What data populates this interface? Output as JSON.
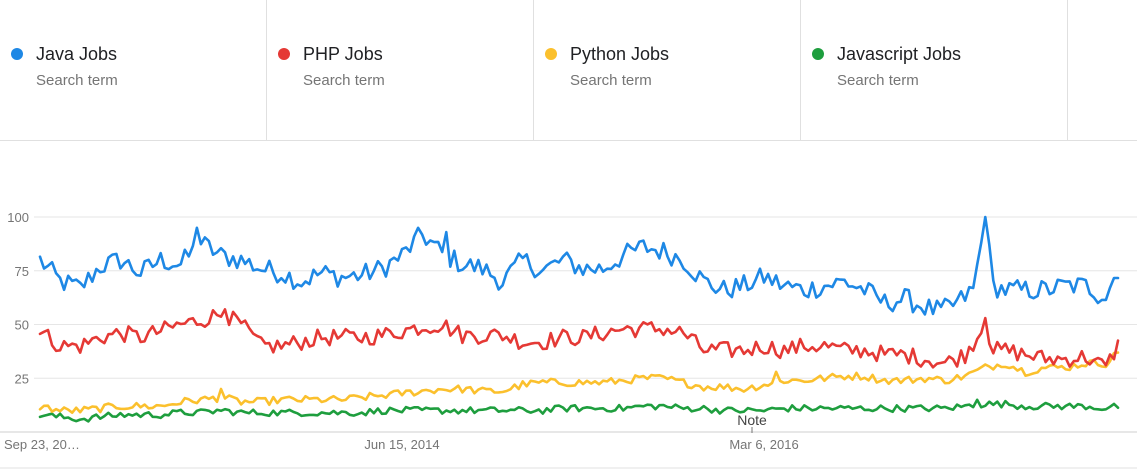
{
  "terms": [
    {
      "name": "Java Jobs",
      "sub": "Search term",
      "color": "#1e88e5"
    },
    {
      "name": "PHP Jobs",
      "sub": "Search term",
      "color": "#e53935"
    },
    {
      "name": "Python Jobs",
      "sub": "Search term",
      "color": "#fbc02d"
    },
    {
      "name": "Javascript Jobs",
      "sub": "Search term",
      "color": "#1e9e3e"
    }
  ],
  "note_label": "Note",
  "chart_data": {
    "type": "line",
    "x_range": [
      "Sep 23, 20…",
      "2019"
    ],
    "x_ticks": [
      {
        "label": "Sep 23, 20…",
        "week_index": 0
      },
      {
        "label": "Jun 15, 2014",
        "week_index": 90
      },
      {
        "label": "Mar 6, 2016",
        "week_index": 180
      }
    ],
    "ylim": [
      0,
      100
    ],
    "y_ticks": [
      25,
      50,
      75,
      100
    ],
    "grid": true,
    "series": [
      {
        "name": "Java Jobs",
        "color": "#1e88e5",
        "anchors": [
          [
            0,
            80
          ],
          [
            5,
            70
          ],
          [
            10,
            67
          ],
          [
            15,
            77
          ],
          [
            20,
            80
          ],
          [
            25,
            74
          ],
          [
            30,
            80
          ],
          [
            35,
            78
          ],
          [
            40,
            88
          ],
          [
            45,
            82
          ],
          [
            50,
            80
          ],
          [
            55,
            76
          ],
          [
            60,
            74
          ],
          [
            65,
            70
          ],
          [
            70,
            74
          ],
          [
            75,
            72
          ],
          [
            80,
            73
          ],
          [
            85,
            76
          ],
          [
            90,
            82
          ],
          [
            95,
            92
          ],
          [
            100,
            83
          ],
          [
            105,
            78
          ],
          [
            110,
            76
          ],
          [
            115,
            70
          ],
          [
            120,
            80
          ],
          [
            125,
            75
          ],
          [
            130,
            80
          ],
          [
            135,
            76
          ],
          [
            140,
            76
          ],
          [
            145,
            82
          ],
          [
            150,
            86
          ],
          [
            155,
            84
          ],
          [
            160,
            80
          ],
          [
            165,
            70
          ],
          [
            170,
            66
          ],
          [
            175,
            68
          ],
          [
            180,
            72
          ],
          [
            185,
            68
          ],
          [
            190,
            66
          ],
          [
            195,
            68
          ],
          [
            200,
            70
          ],
          [
            205,
            66
          ],
          [
            210,
            60
          ],
          [
            215,
            62
          ],
          [
            220,
            58
          ],
          [
            224,
            56
          ],
          [
            228,
            60
          ],
          [
            232,
            66
          ],
          [
            235,
            98
          ],
          [
            237,
            68
          ],
          [
            240,
            66
          ],
          [
            245,
            66
          ],
          [
            250,
            66
          ],
          [
            255,
            68
          ],
          [
            260,
            68
          ],
          [
            265,
            63
          ],
          [
            268,
            76
          ]
        ],
        "spikes": [
          [
            39,
            95
          ],
          [
            101,
            93
          ],
          [
            235,
            100
          ],
          [
            263,
            60
          ]
        ]
      },
      {
        "name": "PHP Jobs",
        "color": "#e53935",
        "anchors": [
          [
            0,
            47
          ],
          [
            5,
            40
          ],
          [
            10,
            40
          ],
          [
            15,
            44
          ],
          [
            20,
            46
          ],
          [
            25,
            44
          ],
          [
            30,
            47
          ],
          [
            35,
            50
          ],
          [
            40,
            52
          ],
          [
            45,
            55
          ],
          [
            50,
            50
          ],
          [
            55,
            40
          ],
          [
            60,
            40
          ],
          [
            65,
            42
          ],
          [
            70,
            44
          ],
          [
            75,
            44
          ],
          [
            80,
            44
          ],
          [
            85,
            45
          ],
          [
            90,
            47
          ],
          [
            95,
            49
          ],
          [
            100,
            50
          ],
          [
            105,
            45
          ],
          [
            110,
            45
          ],
          [
            115,
            45
          ],
          [
            120,
            42
          ],
          [
            125,
            42
          ],
          [
            130,
            44
          ],
          [
            135,
            44
          ],
          [
            140,
            46
          ],
          [
            145,
            48
          ],
          [
            150,
            48
          ],
          [
            155,
            48
          ],
          [
            160,
            46
          ],
          [
            165,
            38
          ],
          [
            170,
            38
          ],
          [
            175,
            38
          ],
          [
            180,
            40
          ],
          [
            185,
            38
          ],
          [
            190,
            40
          ],
          [
            195,
            40
          ],
          [
            200,
            38
          ],
          [
            205,
            38
          ],
          [
            210,
            36
          ],
          [
            215,
            36
          ],
          [
            220,
            34
          ],
          [
            225,
            32
          ],
          [
            230,
            36
          ],
          [
            235,
            50
          ],
          [
            237,
            38
          ],
          [
            240,
            38
          ],
          [
            245,
            36
          ],
          [
            250,
            34
          ],
          [
            255,
            34
          ],
          [
            260,
            35
          ],
          [
            265,
            30
          ],
          [
            268,
            40
          ]
        ],
        "spikes": [
          [
            46,
            57
          ],
          [
            235,
            53
          ]
        ]
      },
      {
        "name": "Python Jobs",
        "color": "#fbc02d",
        "anchors": [
          [
            0,
            12
          ],
          [
            5,
            10
          ],
          [
            10,
            10
          ],
          [
            15,
            11
          ],
          [
            20,
            12
          ],
          [
            25,
            12
          ],
          [
            30,
            12
          ],
          [
            35,
            14
          ],
          [
            40,
            15
          ],
          [
            45,
            16
          ],
          [
            50,
            14
          ],
          [
            55,
            14
          ],
          [
            60,
            15
          ],
          [
            65,
            15
          ],
          [
            70,
            15
          ],
          [
            75,
            15
          ],
          [
            80,
            16
          ],
          [
            85,
            17
          ],
          [
            90,
            18
          ],
          [
            95,
            19
          ],
          [
            100,
            20
          ],
          [
            105,
            20
          ],
          [
            110,
            19
          ],
          [
            115,
            19
          ],
          [
            120,
            22
          ],
          [
            125,
            23
          ],
          [
            130,
            23
          ],
          [
            135,
            23
          ],
          [
            140,
            23
          ],
          [
            145,
            24
          ],
          [
            150,
            25
          ],
          [
            155,
            25
          ],
          [
            160,
            23
          ],
          [
            165,
            21
          ],
          [
            170,
            21
          ],
          [
            175,
            20
          ],
          [
            180,
            22
          ],
          [
            185,
            24
          ],
          [
            190,
            24
          ],
          [
            195,
            25
          ],
          [
            200,
            26
          ],
          [
            205,
            26
          ],
          [
            210,
            24
          ],
          [
            215,
            24
          ],
          [
            220,
            25
          ],
          [
            225,
            24
          ],
          [
            230,
            26
          ],
          [
            235,
            30
          ],
          [
            240,
            32
          ],
          [
            245,
            28
          ],
          [
            250,
            30
          ],
          [
            255,
            30
          ],
          [
            260,
            32
          ],
          [
            265,
            32
          ],
          [
            268,
            37
          ]
        ],
        "spikes": [
          [
            45,
            20
          ],
          [
            183,
            28
          ]
        ]
      },
      {
        "name": "Javascript Jobs",
        "color": "#1e9e3e",
        "anchors": [
          [
            0,
            8
          ],
          [
            5,
            7
          ],
          [
            10,
            6
          ],
          [
            15,
            7
          ],
          [
            20,
            8
          ],
          [
            25,
            8
          ],
          [
            30,
            8
          ],
          [
            35,
            9
          ],
          [
            40,
            9
          ],
          [
            45,
            10
          ],
          [
            50,
            9
          ],
          [
            55,
            9
          ],
          [
            60,
            9
          ],
          [
            65,
            9
          ],
          [
            70,
            9
          ],
          [
            75,
            9
          ],
          [
            80,
            9
          ],
          [
            85,
            10
          ],
          [
            90,
            10
          ],
          [
            95,
            10
          ],
          [
            100,
            10
          ],
          [
            105,
            10
          ],
          [
            110,
            10
          ],
          [
            115,
            10
          ],
          [
            120,
            10
          ],
          [
            125,
            10
          ],
          [
            130,
            11
          ],
          [
            135,
            11
          ],
          [
            140,
            11
          ],
          [
            145,
            11
          ],
          [
            150,
            12
          ],
          [
            155,
            12
          ],
          [
            160,
            11
          ],
          [
            165,
            11
          ],
          [
            170,
            10
          ],
          [
            175,
            10
          ],
          [
            180,
            10
          ],
          [
            185,
            11
          ],
          [
            190,
            11
          ],
          [
            195,
            11
          ],
          [
            200,
            11
          ],
          [
            205,
            11
          ],
          [
            210,
            11
          ],
          [
            215,
            11
          ],
          [
            220,
            11
          ],
          [
            225,
            11
          ],
          [
            230,
            12
          ],
          [
            235,
            13
          ],
          [
            240,
            13
          ],
          [
            245,
            12
          ],
          [
            250,
            12
          ],
          [
            255,
            12
          ],
          [
            260,
            12
          ],
          [
            265,
            11
          ],
          [
            268,
            12
          ]
        ],
        "spikes": [
          [
            233,
            15
          ]
        ]
      }
    ]
  }
}
